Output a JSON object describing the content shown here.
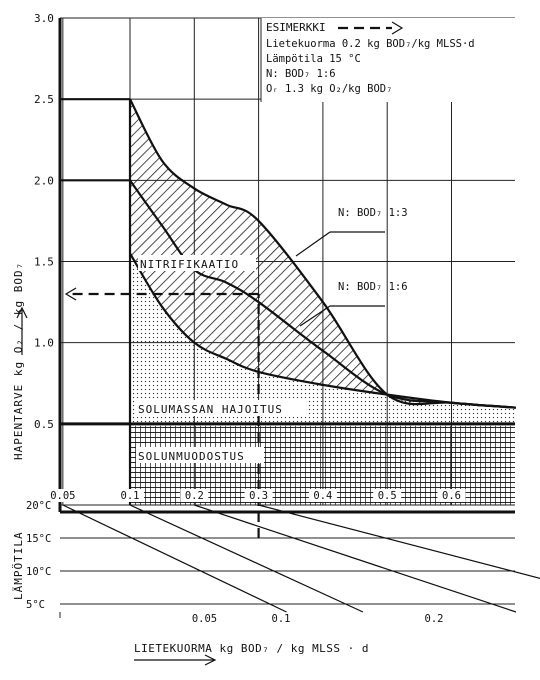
{
  "chart_data": {
    "type": "area",
    "example_box": {
      "title": "ESIMERKKI",
      "lines": [
        "Lietekuorma  0.2 kg BOD₇/kg MLSS·d",
        "Lämpötila 15 °C",
        "N: BOD₇   1:6",
        "Oᵣ  1.3 kg O₂/kg BOD₇"
      ]
    },
    "ylabel": "HAPENTARVE  kg O₂ / kg BOD₇",
    "y_ticks": [
      "3.0",
      "2.5",
      "2.0",
      "1.5",
      "1.0",
      "0.5"
    ],
    "ylim": [
      0,
      3.0
    ],
    "x_ticks_upper": [
      {
        "label": "0.05",
        "value": 0.05
      },
      {
        "label": "0.1",
        "value": 0.1
      },
      {
        "label": "0.2",
        "value": 0.2
      },
      {
        "label": "0.3",
        "value": 0.3
      },
      {
        "label": "0.4",
        "value": 0.4
      },
      {
        "label": "0.5",
        "value": 0.5
      },
      {
        "label": "0.6",
        "value": 0.6
      }
    ],
    "temp_label": "LÄMPÖTILA",
    "temp_ticks": [
      "20°C",
      "15°C",
      "10°C",
      "5°C"
    ],
    "temperatures": [
      20,
      15,
      10,
      5
    ],
    "x_ticks_lower": [
      {
        "label": "0.05",
        "value": 0.05
      },
      {
        "label": "0.1",
        "value": 0.1
      },
      {
        "label": "0.2",
        "value": 0.2
      }
    ],
    "xlabel": "LIETEKUORMA  kg BOD₇ / kg MLSS · d",
    "regions": [
      {
        "label": "NITRIFIKAATIO"
      },
      {
        "label": "SOLUMASSAN HAJOITUS"
      },
      {
        "label": "SOLUNMUODOSTUS"
      }
    ],
    "series": [
      {
        "name": "N: BOD₇ 1:3",
        "x": [
          0.1,
          0.15,
          0.2,
          0.25,
          0.3,
          0.4,
          0.5,
          0.6,
          0.7
        ],
        "y": [
          2.5,
          2.12,
          1.95,
          1.85,
          1.75,
          1.25,
          0.68,
          0.63,
          0.6
        ]
      },
      {
        "name": "N: BOD₇ 1:6",
        "x": [
          0.1,
          0.15,
          0.2,
          0.25,
          0.3,
          0.4,
          0.5,
          0.6,
          0.7
        ],
        "y": [
          2.0,
          1.72,
          1.45,
          1.37,
          1.25,
          0.95,
          0.68,
          0.63,
          0.6
        ]
      },
      {
        "x": [
          0.1,
          0.15,
          0.2,
          0.25,
          0.3,
          0.4,
          0.5,
          0.6,
          0.7
        ],
        "y": [
          1.55,
          1.22,
          1.0,
          0.9,
          0.82,
          0.74,
          0.68,
          0.63,
          0.6
        ]
      },
      {
        "x": [
          0.1,
          0.7
        ],
        "y": [
          0.5,
          0.5
        ]
      }
    ],
    "example_path": {
      "load": 0.2,
      "temperature": 15,
      "x_upper": 0.3,
      "result": 1.3
    }
  }
}
